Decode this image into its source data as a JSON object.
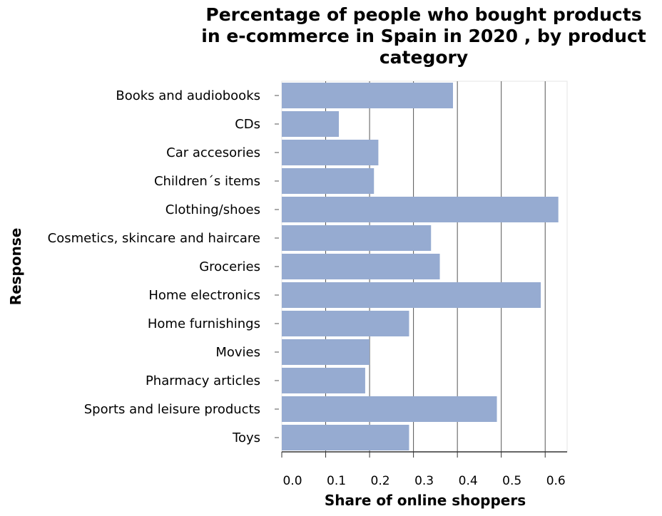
{
  "chart_data": {
    "type": "bar",
    "orientation": "horizontal",
    "title": "Percentage of people who bought products\nin e-commerce in Spain in 2020 , by product\ncategory",
    "xlabel": "Share of online shoppers",
    "ylabel": "Response",
    "categories": [
      "Books and audiobooks",
      "CDs",
      "Car accesories",
      "Children´s items",
      "Clothing/shoes",
      "Cosmetics, skincare and haircare",
      "Groceries",
      "Home electronics",
      "Home furnishings",
      "Movies",
      "Pharmacy articles",
      "Sports and leisure products",
      "Toys"
    ],
    "values": [
      0.39,
      0.13,
      0.22,
      0.21,
      0.63,
      0.34,
      0.36,
      0.59,
      0.29,
      0.2,
      0.19,
      0.49,
      0.29
    ],
    "xlim": [
      0,
      0.65
    ],
    "xticks": [
      0,
      0.1,
      0.2,
      0.3,
      0.4,
      0.5,
      0.6
    ],
    "xtick_labels": [
      "0.0",
      "0.1",
      "0.2",
      "0.3",
      "0.4",
      "0.5",
      "0.6"
    ],
    "bar_color": "#96abd1",
    "grid": "vertical"
  }
}
